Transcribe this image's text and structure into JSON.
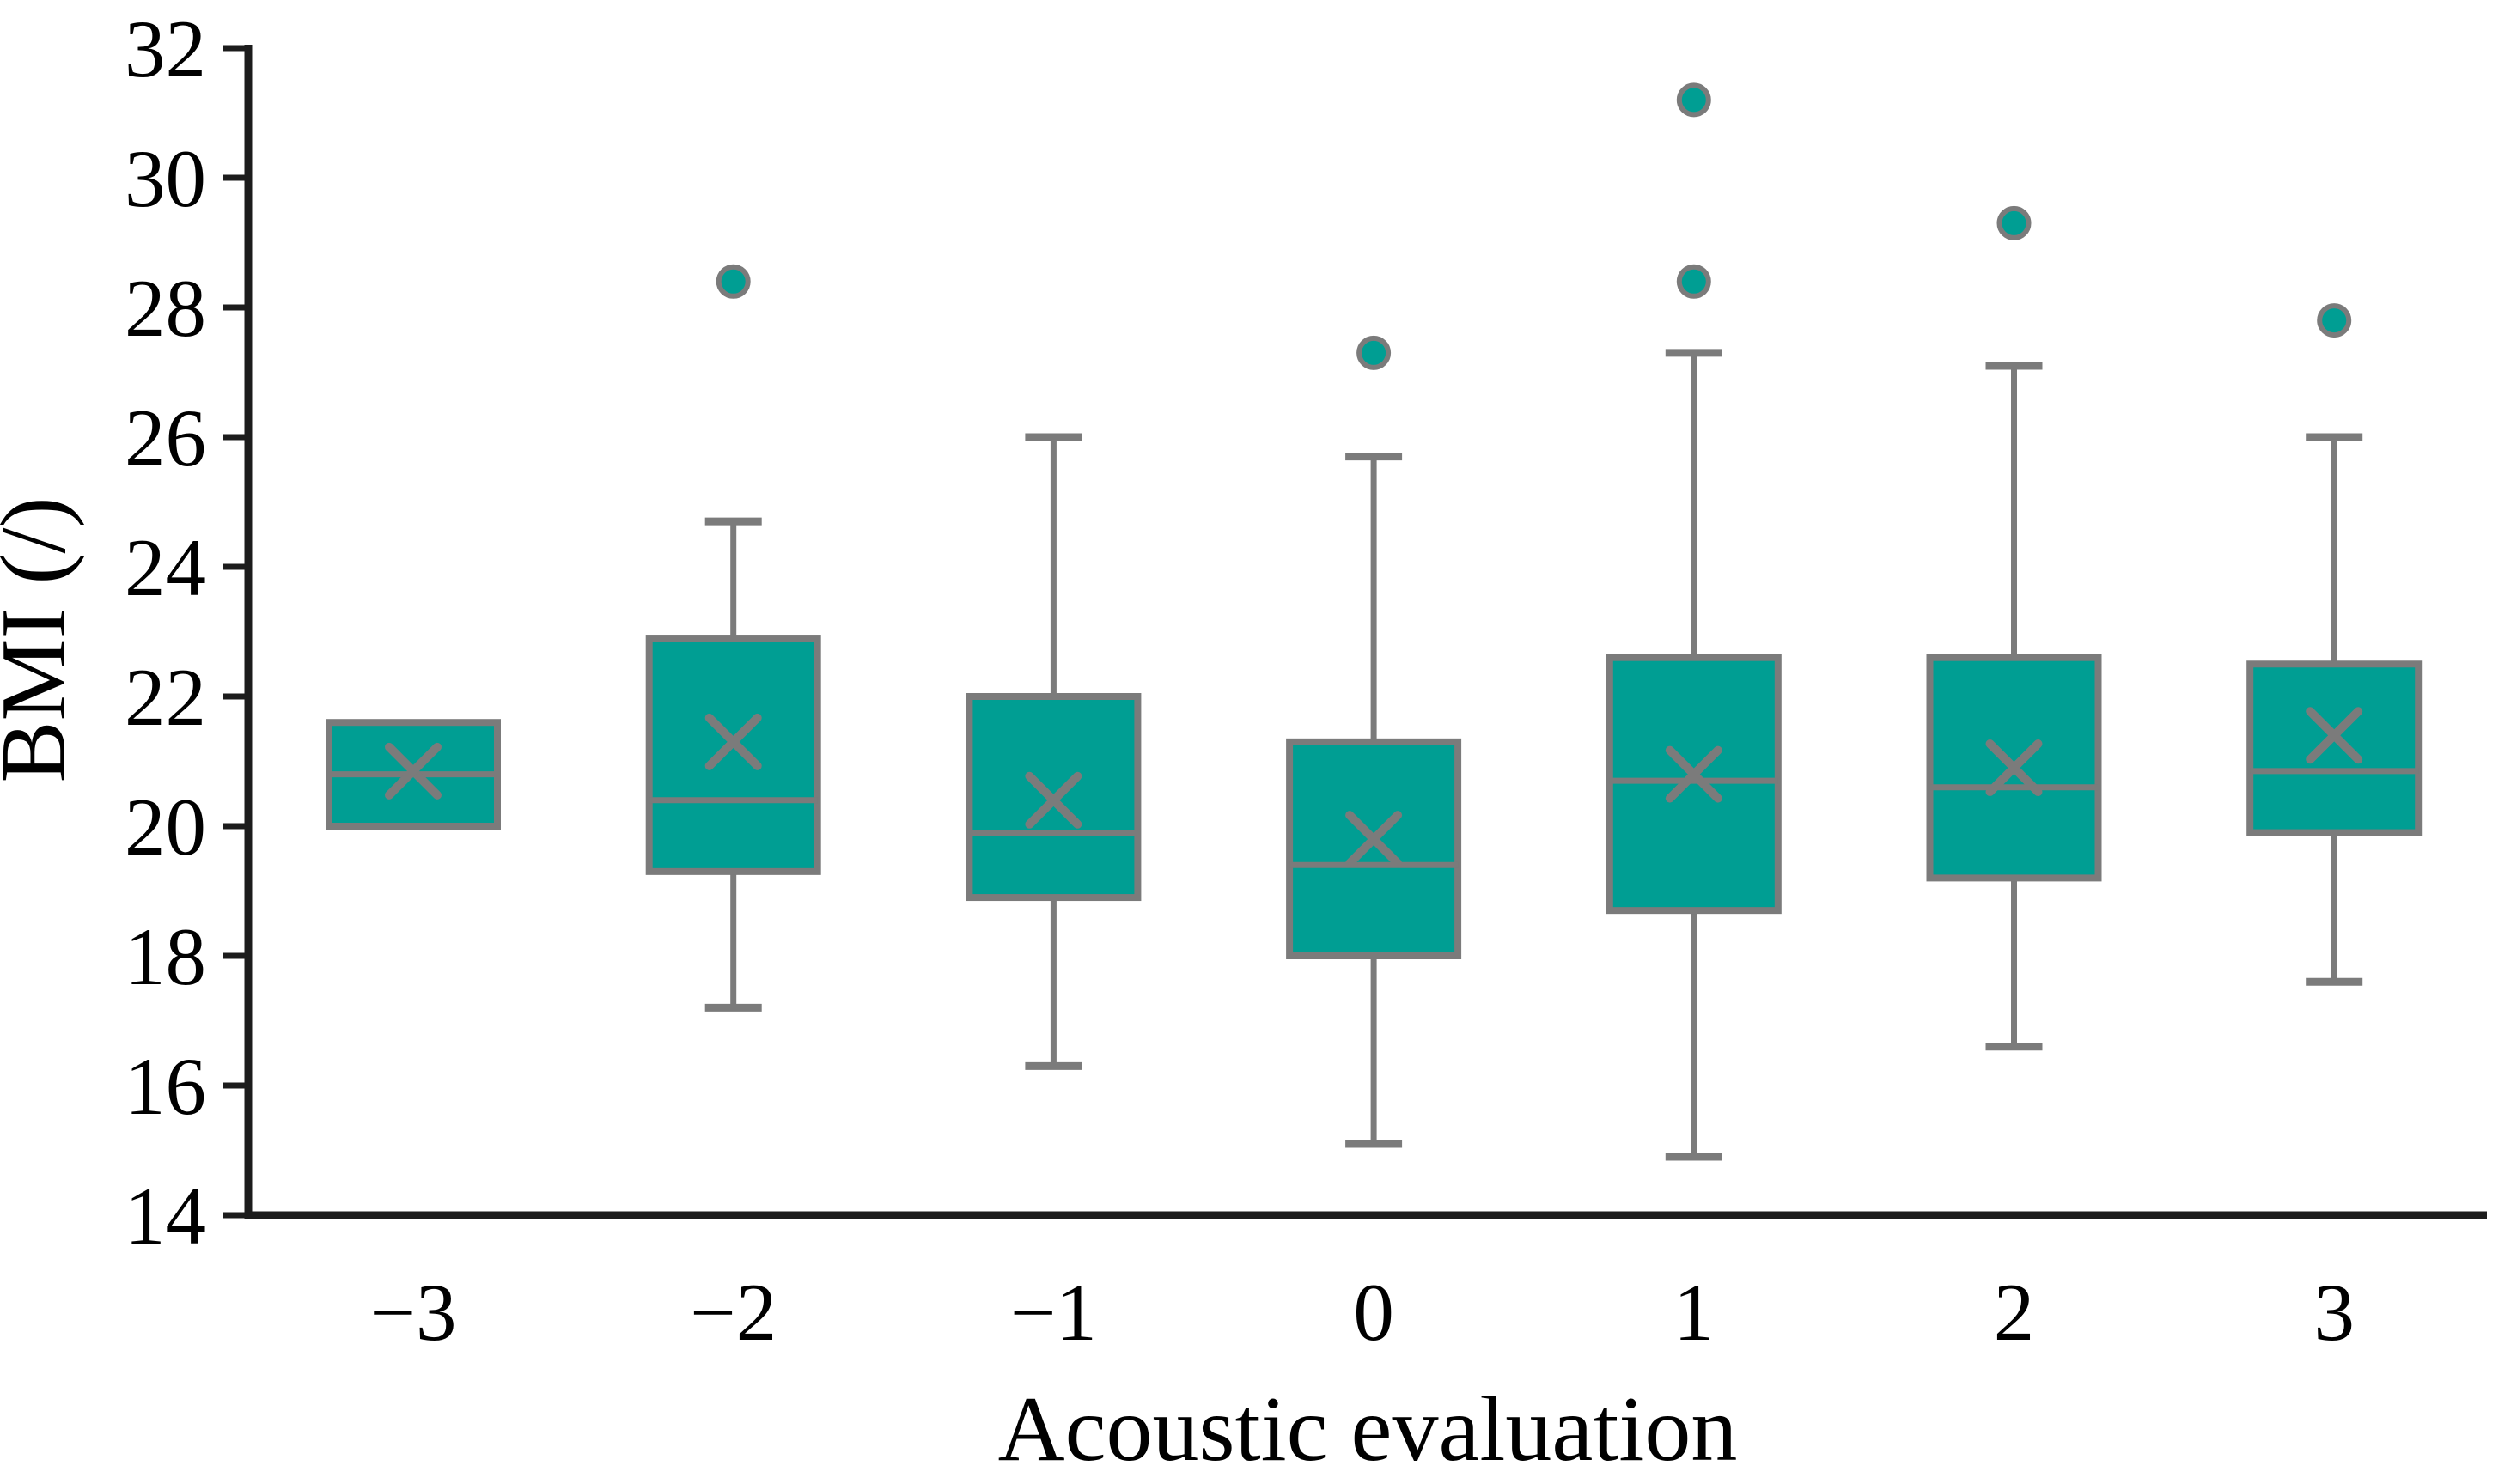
{
  "chart_data": {
    "type": "box",
    "title": "",
    "xlabel": "Acoustic evaluation",
    "ylabel": "BMI (/)",
    "ylim": [
      14,
      32
    ],
    "yticks": [
      32,
      30,
      28,
      26,
      24,
      22,
      20,
      18,
      16,
      14
    ],
    "categories": [
      "−3",
      "−2",
      "−1",
      "0",
      "1",
      "2",
      "3"
    ],
    "grid": false,
    "legend": "none",
    "series": [
      {
        "category": "−3",
        "whisker_low": 20.0,
        "q1": 20.0,
        "median": 20.8,
        "q3": 21.6,
        "whisker_high": 21.6,
        "mean": 20.85,
        "outliers": []
      },
      {
        "category": "−2",
        "whisker_low": 17.2,
        "q1": 19.3,
        "median": 20.4,
        "q3": 22.9,
        "whisker_high": 24.7,
        "mean": 21.3,
        "outliers": [
          28.4
        ]
      },
      {
        "category": "−1",
        "whisker_low": 16.3,
        "q1": 18.9,
        "median": 19.9,
        "q3": 22.0,
        "whisker_high": 26.0,
        "mean": 20.4,
        "outliers": []
      },
      {
        "category": "0",
        "whisker_low": 15.1,
        "q1": 18.0,
        "median": 19.4,
        "q3": 21.3,
        "whisker_high": 25.7,
        "mean": 19.8,
        "outliers": [
          27.3
        ]
      },
      {
        "category": "1",
        "whisker_low": 14.9,
        "q1": 18.7,
        "median": 20.7,
        "q3": 22.6,
        "whisker_high": 27.3,
        "mean": 20.8,
        "outliers": [
          28.4,
          31.2
        ]
      },
      {
        "category": "2",
        "whisker_low": 16.6,
        "q1": 19.2,
        "median": 20.6,
        "q3": 22.6,
        "whisker_high": 27.1,
        "mean": 20.9,
        "outliers": [
          29.3
        ]
      },
      {
        "category": "3",
        "whisker_low": 17.6,
        "q1": 19.9,
        "median": 20.85,
        "q3": 22.5,
        "whisker_high": 26.0,
        "mean": 21.4,
        "outliers": [
          27.8
        ]
      }
    ],
    "colors": {
      "box_fill": "#009e93",
      "line_gray": "#7b7b7b",
      "axis_black": "#1c1c1c",
      "text": "#000000"
    }
  }
}
